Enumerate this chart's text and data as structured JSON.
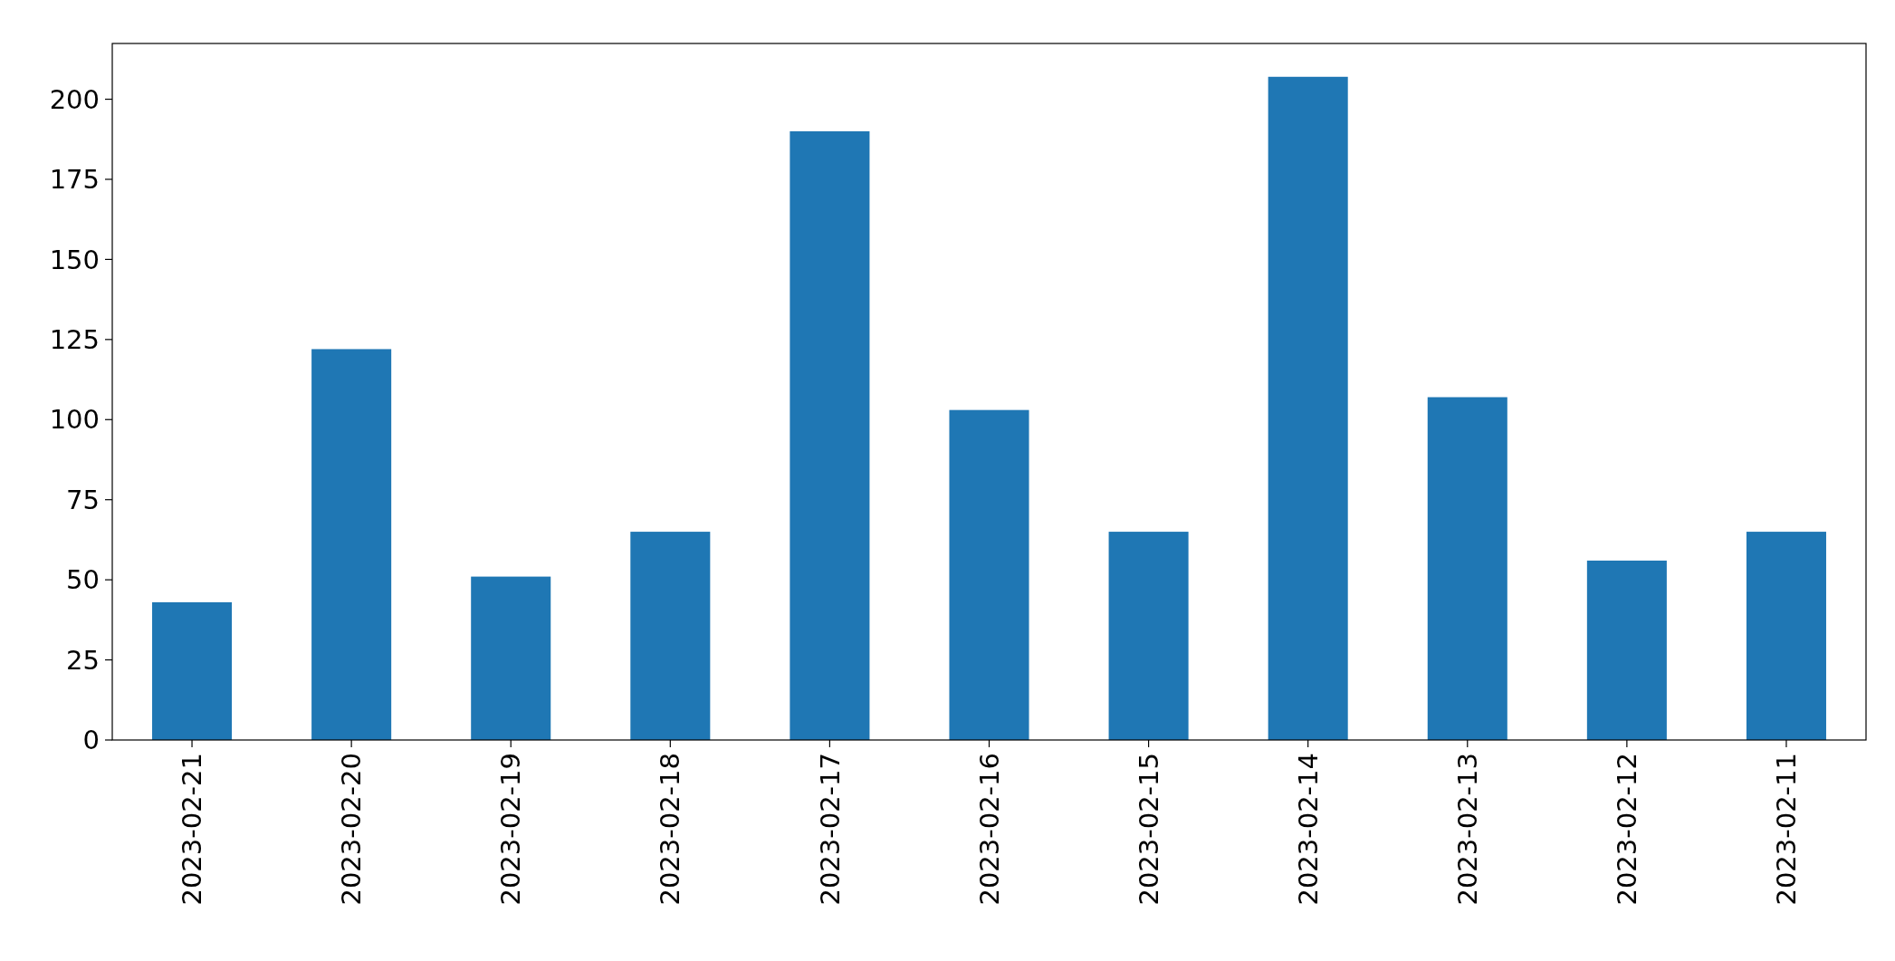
{
  "chart_data": {
    "type": "bar",
    "categories": [
      "2023-02-21",
      "2023-02-20",
      "2023-02-19",
      "2023-02-18",
      "2023-02-17",
      "2023-02-16",
      "2023-02-15",
      "2023-02-14",
      "2023-02-13",
      "2023-02-12",
      "2023-02-11"
    ],
    "values": [
      43,
      122,
      51,
      65,
      190,
      103,
      65,
      207,
      107,
      56,
      65
    ],
    "color": "#1f77b4",
    "ylim": [
      0,
      217.4
    ],
    "yticks": [
      0,
      25,
      50,
      75,
      100,
      125,
      150,
      175,
      200
    ],
    "grid": false
  }
}
